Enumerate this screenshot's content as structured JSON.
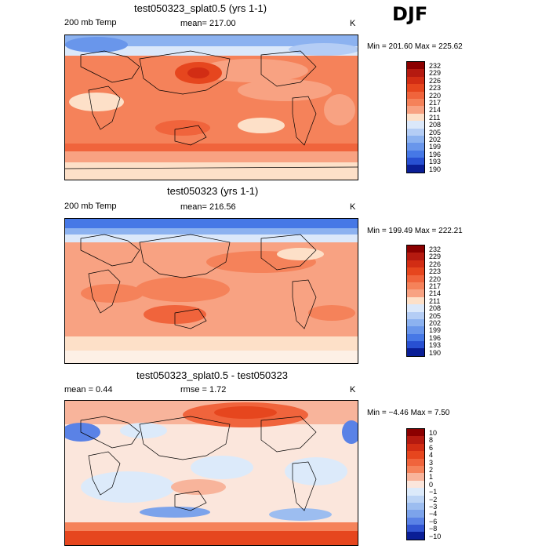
{
  "season": "DJF",
  "panels": [
    {
      "title": "test050323_splat0.5 (yrs 1-1)",
      "left_label": "200 mb Temp",
      "center_label": "mean= 217.00",
      "unit": "K",
      "minmax": "Min = 201.60 Max = 225.62",
      "colorbar": [
        "232",
        "229",
        "226",
        "223",
        "220",
        "217",
        "214",
        "211",
        "208",
        "205",
        "202",
        "199",
        "196",
        "193",
        "190"
      ],
      "colors": [
        "#8b0000",
        "#b51a10",
        "#d22d14",
        "#e6461e",
        "#f0643c",
        "#f5825a",
        "#f8a282",
        "#fde0c8",
        "#dbe8fa",
        "#b4cdf5",
        "#8cb2f0",
        "#6996eb",
        "#4678e6",
        "#2850d2",
        "#0a1e96"
      ]
    },
    {
      "title": "test050323 (yrs 1-1)",
      "left_label": "200 mb Temp",
      "center_label": "mean= 216.56",
      "unit": "K",
      "minmax": "Min = 199.49 Max = 222.21",
      "colorbar": [
        "232",
        "229",
        "226",
        "223",
        "220",
        "217",
        "214",
        "211",
        "208",
        "205",
        "202",
        "199",
        "196",
        "193",
        "190"
      ],
      "colors": [
        "#8b0000",
        "#b51a10",
        "#d22d14",
        "#e6461e",
        "#f0643c",
        "#f5825a",
        "#f8a282",
        "#fde0c8",
        "#dbe8fa",
        "#b4cdf5",
        "#8cb2f0",
        "#6996eb",
        "#4678e6",
        "#2850d2",
        "#0a1e96"
      ]
    },
    {
      "title": "test050323_splat0.5 - test050323",
      "left_label": "mean =   0.44",
      "center_label": "rmse =   1.72",
      "unit": "K",
      "minmax": "Min = −4.46 Max =   7.50",
      "colorbar": [
        "10",
        "8",
        "6",
        "4",
        "3",
        "2",
        "1",
        "0",
        "−1",
        "−2",
        "−3",
        "−4",
        "−6",
        "−8",
        "−10"
      ],
      "colors": [
        "#8b0000",
        "#b51a10",
        "#d22d14",
        "#e6461e",
        "#f0643c",
        "#f5825a",
        "#f8b49b",
        "#fbe6dc",
        "#dceafa",
        "#bcd4f5",
        "#9cbdf0",
        "#7ca3eb",
        "#5a82e6",
        "#3255d2",
        "#0a1e96"
      ]
    }
  ]
}
